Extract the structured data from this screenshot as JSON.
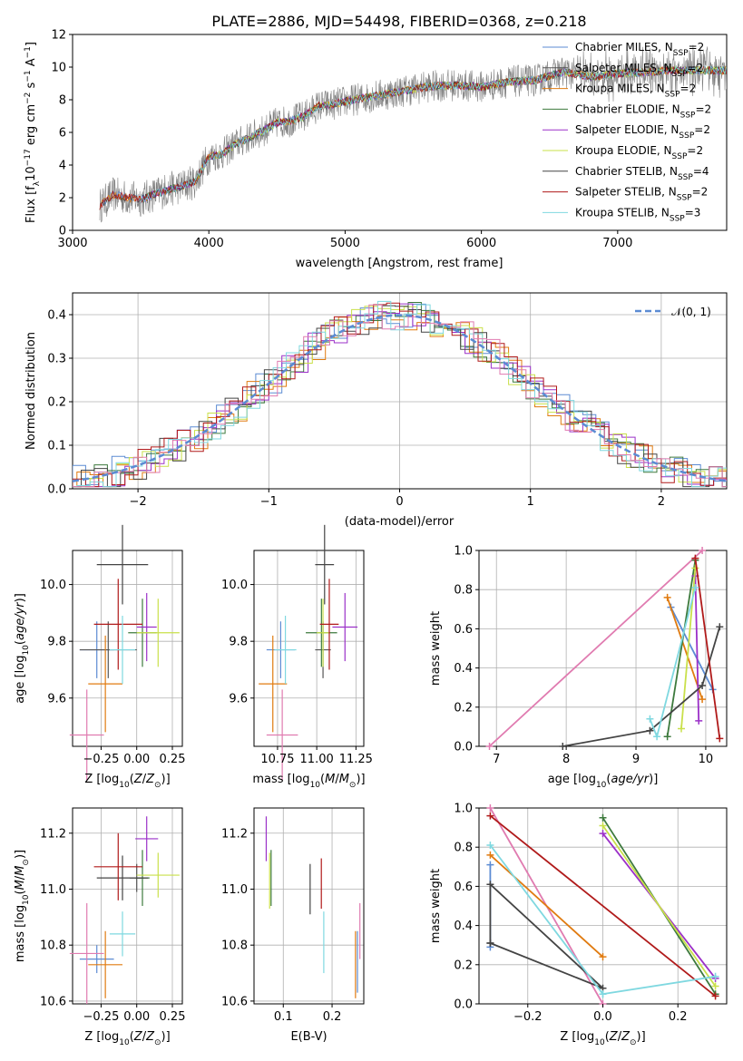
{
  "figure_title": "PLATE=2886, MJD=54498, FIBERID=0368, z=0.218",
  "colors": {
    "Chabrier MILES": "#5b8bd3",
    "Salpeter MILES": "#555555",
    "Kroupa MILES": "#e07b10",
    "Chabrier ELODIE": "#3d7a3d",
    "Salpeter ELODIE": "#9b30c8",
    "Kroupa ELODIE": "#c9e04a",
    "Chabrier STELIB": "#444444",
    "Salpeter STELIB": "#b01a1a",
    "Kroupa STELIB": "#7fd8e0",
    "Pink": "#e07bb0",
    "data": "#808080"
  },
  "chart_data": [
    {
      "type": "line",
      "id": "spectrum",
      "title": "PLATE=2886, MJD=54498, FIBERID=0368, z=0.218",
      "xlabel": "wavelength [Angstrom, rest frame]",
      "ylabel": "Flux [fλ10^-17 erg cm^-2 s^-1 A^-1]",
      "xlim": [
        3000,
        7800
      ],
      "ylim": [
        0,
        12
      ],
      "xticks": [
        "3000",
        "4000",
        "5000",
        "6000",
        "7000"
      ],
      "yticks": [
        "0",
        "2",
        "4",
        "6",
        "8",
        "10",
        "12"
      ],
      "legend": [
        "Chabrier MILES, N_SSP=2",
        "Salpeter MILES, N_SSP=2",
        "Kroupa MILES, N_SSP=2",
        "Chabrier ELODIE, N_SSP=2",
        "Salpeter ELODIE, N_SSP=2",
        "Kroupa ELODIE, N_SSP=2",
        "Chabrier STELIB, N_SSP=4",
        "Salpeter STELIB, N_SSP=2",
        "Kroupa STELIB, N_SSP=3"
      ],
      "legend_placement": "right",
      "continuum": {
        "x": [
          3200,
          3300,
          3400,
          3500,
          3600,
          3700,
          3800,
          3900,
          4000,
          4100,
          4200,
          4300,
          4400,
          4500,
          4600,
          4700,
          4800,
          4900,
          5000,
          5200,
          5400,
          5600,
          5800,
          6000,
          6200,
          6400,
          6600,
          6800,
          7000,
          7200,
          7400,
          7600,
          7800
        ],
        "y": [
          1.5,
          2.2,
          2.0,
          1.9,
          2.2,
          2.5,
          2.7,
          3.0,
          4.5,
          4.7,
          5.3,
          5.7,
          6.1,
          6.6,
          6.7,
          7.0,
          7.6,
          7.7,
          7.9,
          8.2,
          8.5,
          8.8,
          8.9,
          8.8,
          9.1,
          9.2,
          9.7,
          9.4,
          9.6,
          9.7,
          9.8,
          9.8,
          9.8
        ]
      }
    },
    {
      "type": "line",
      "id": "residual_histogram",
      "xlabel": "(data-model)/error",
      "ylabel": "Normed distribution",
      "xlim": [
        -2.5,
        2.5
      ],
      "ylim": [
        0,
        0.45
      ],
      "xticks": [
        "−2",
        "−1",
        "0",
        "1",
        "2"
      ],
      "yticks": [
        "0.0",
        "0.1",
        "0.2",
        "0.3",
        "0.4"
      ],
      "legend": [
        "𝒩(0, 1)"
      ],
      "legend_placement": "upper right",
      "gaussian": {
        "mean": 0,
        "sigma": 1
      }
    },
    {
      "type": "scatter",
      "id": "age_vs_Z",
      "xlabel": "Z [log10(Z/Z⊙)]",
      "ylabel": "age [log10(age/yr)]",
      "xlim": [
        -0.45,
        0.32
      ],
      "ylim": [
        9.43,
        10.12
      ],
      "xticks": [
        "−0.25",
        "0.00",
        "0.25"
      ],
      "yticks": [
        "9.6",
        "9.8",
        "10.0"
      ],
      "points": [
        {
          "model": "Chabrier MILES",
          "x": -0.28,
          "xerr": 0.12,
          "y": 9.77,
          "yerr": 0.1
        },
        {
          "model": "Salpeter MILES",
          "x": -0.2,
          "xerr": 0.2,
          "y": 9.77,
          "yerr": 0.1
        },
        {
          "model": "Kroupa MILES",
          "x": -0.22,
          "xerr": 0.12,
          "y": 9.65,
          "yerr": 0.17
        },
        {
          "model": "Chabrier ELODIE",
          "x": 0.04,
          "xerr": 0.1,
          "y": 9.83,
          "yerr": 0.12
        },
        {
          "model": "Salpeter ELODIE",
          "x": 0.07,
          "xerr": 0.07,
          "y": 9.85,
          "yerr": 0.12
        },
        {
          "model": "Kroupa ELODIE",
          "x": 0.15,
          "xerr": 0.15,
          "y": 9.83,
          "yerr": 0.12
        },
        {
          "model": "Chabrier STELIB",
          "x": -0.1,
          "xerr": 0.18,
          "y": 10.07,
          "yerr": 0.14
        },
        {
          "model": "Salpeter STELIB",
          "x": -0.13,
          "xerr": 0.17,
          "y": 9.86,
          "yerr": 0.16
        },
        {
          "model": "Kroupa STELIB",
          "x": -0.1,
          "xerr": 0.09,
          "y": 9.77,
          "yerr": 0.12
        },
        {
          "model": "Pink",
          "x": -0.35,
          "xerr": 0.12,
          "y": 9.47,
          "yerr": 0.16
        }
      ]
    },
    {
      "type": "scatter",
      "id": "age_vs_mass",
      "xlabel": "mass [log10(M/M⊙)]",
      "ylim": [
        9.43,
        10.12
      ],
      "xlim": [
        10.6,
        11.3
      ],
      "xticks": [
        "10.75",
        "11.00",
        "11.25"
      ],
      "yticks": [
        "9.6",
        "9.8",
        "10.0"
      ],
      "points": [
        {
          "model": "Chabrier MILES",
          "x": 10.77,
          "xerr": 0.09,
          "y": 9.77,
          "yerr": 0.1
        },
        {
          "model": "Salpeter MILES",
          "x": 11.04,
          "xerr": 0.05,
          "y": 9.77,
          "yerr": 0.1
        },
        {
          "model": "Kroupa MILES",
          "x": 10.72,
          "xerr": 0.09,
          "y": 9.65,
          "yerr": 0.17
        },
        {
          "model": "Chabrier ELODIE",
          "x": 11.03,
          "xerr": 0.1,
          "y": 9.83,
          "yerr": 0.12
        },
        {
          "model": "Salpeter ELODIE",
          "x": 11.18,
          "xerr": 0.08,
          "y": 9.85,
          "yerr": 0.12
        },
        {
          "model": "Kroupa ELODIE",
          "x": 11.04,
          "xerr": 0.04,
          "y": 9.83,
          "yerr": 0.12
        },
        {
          "model": "Chabrier STELIB",
          "x": 11.05,
          "xerr": 0.06,
          "y": 10.07,
          "yerr": 0.14
        },
        {
          "model": "Salpeter STELIB",
          "x": 11.08,
          "xerr": 0.06,
          "y": 9.86,
          "yerr": 0.16
        },
        {
          "model": "Kroupa STELIB",
          "x": 10.8,
          "xerr": 0.07,
          "y": 9.77,
          "yerr": 0.12
        },
        {
          "model": "Pink",
          "x": 10.78,
          "xerr": 0.1,
          "y": 9.47,
          "yerr": 0.16
        }
      ]
    },
    {
      "type": "line",
      "id": "mass_weight_vs_age",
      "xlabel": "age [log10(age/yr)]",
      "ylabel": "mass weight",
      "xlim": [
        6.75,
        10.3
      ],
      "ylim": [
        0,
        1
      ],
      "xticks": [
        "7",
        "8",
        "9",
        "10"
      ],
      "yticks": [
        "0.0",
        "0.2",
        "0.4",
        "0.6",
        "0.8",
        "1.0"
      ],
      "series": [
        {
          "model": "Pink",
          "x": [
            6.9,
            9.95
          ],
          "y": [
            0.0,
            1.0
          ]
        },
        {
          "model": "Chabrier MILES",
          "x": [
            9.5,
            10.1
          ],
          "y": [
            0.71,
            0.29
          ]
        },
        {
          "model": "Kroupa MILES",
          "x": [
            9.45,
            9.95
          ],
          "y": [
            0.76,
            0.24
          ]
        },
        {
          "model": "Chabrier ELODIE",
          "x": [
            9.45,
            9.85
          ],
          "y": [
            0.05,
            0.95
          ]
        },
        {
          "model": "Salpeter ELODIE",
          "x": [
            9.85,
            9.9
          ],
          "y": [
            0.87,
            0.13
          ]
        },
        {
          "model": "Kroupa ELODIE",
          "x": [
            9.65,
            9.85
          ],
          "y": [
            0.09,
            0.91
          ]
        },
        {
          "model": "Chabrier STELIB",
          "x": [
            7.95,
            9.2,
            9.95,
            10.2
          ],
          "y": [
            0.0,
            0.08,
            0.31,
            0.61
          ]
        },
        {
          "model": "Salpeter STELIB",
          "x": [
            9.85,
            10.2
          ],
          "y": [
            0.96,
            0.04
          ]
        },
        {
          "model": "Kroupa STELIB",
          "x": [
            9.2,
            9.3,
            9.85
          ],
          "y": [
            0.14,
            0.05,
            0.81
          ]
        }
      ]
    },
    {
      "type": "scatter",
      "id": "mass_vs_Z",
      "xlabel": "Z [log10(Z/Z⊙)]",
      "ylabel": "mass [log10(M/M⊙)]",
      "xlim": [
        -0.45,
        0.32
      ],
      "ylim": [
        10.59,
        11.29
      ],
      "xticks": [
        "−0.25",
        "0.00",
        "0.25"
      ],
      "yticks": [
        "10.6",
        "10.8",
        "11.0",
        "11.2"
      ],
      "points": [
        {
          "model": "Chabrier MILES",
          "x": -0.28,
          "xerr": 0.12,
          "y": 10.75,
          "yerr": 0.05
        },
        {
          "model": "Salpeter MILES",
          "x": 0.0,
          "xerr": 0.05,
          "y": 11.04,
          "yerr": 0.05
        },
        {
          "model": "Kroupa MILES",
          "x": -0.22,
          "xerr": 0.12,
          "y": 10.73,
          "yerr": 0.12
        },
        {
          "model": "Chabrier ELODIE",
          "x": 0.04,
          "xerr": 0.05,
          "y": 11.04,
          "yerr": 0.1
        },
        {
          "model": "Salpeter ELODIE",
          "x": 0.07,
          "xerr": 0.08,
          "y": 11.18,
          "yerr": 0.08
        },
        {
          "model": "Kroupa ELODIE",
          "x": 0.15,
          "xerr": 0.15,
          "y": 11.05,
          "yerr": 0.08
        },
        {
          "model": "Chabrier STELIB",
          "x": -0.1,
          "xerr": 0.18,
          "y": 11.04,
          "yerr": 0.08
        },
        {
          "model": "Salpeter STELIB",
          "x": -0.13,
          "xerr": 0.17,
          "y": 11.08,
          "yerr": 0.12
        },
        {
          "model": "Kroupa STELIB",
          "x": -0.1,
          "xerr": 0.09,
          "y": 10.84,
          "yerr": 0.08
        },
        {
          "model": "Pink",
          "x": -0.35,
          "xerr": 0.12,
          "y": 10.77,
          "yerr": 0.18
        }
      ]
    },
    {
      "type": "scatter",
      "id": "mass_vs_ebv",
      "xlabel": "E(B-V)",
      "xlim": [
        0.04,
        0.265
      ],
      "ylim": [
        10.59,
        11.29
      ],
      "xticks": [
        "0.1",
        "0.2"
      ],
      "yticks": [
        "10.6",
        "10.8",
        "11.0",
        "11.2"
      ],
      "points": [
        {
          "model": "Salpeter ELODIE",
          "x": 0.065,
          "y": 11.18,
          "yerr": 0.08
        },
        {
          "model": "Chabrier ELODIE",
          "x": 0.075,
          "y": 11.04,
          "yerr": 0.1
        },
        {
          "model": "Kroupa ELODIE",
          "x": 0.072,
          "y": 11.03,
          "yerr": 0.1
        },
        {
          "model": "Chabrier STELIB",
          "x": 0.155,
          "y": 11.0,
          "yerr": 0.09
        },
        {
          "model": "Salpeter STELIB",
          "x": 0.178,
          "y": 11.02,
          "yerr": 0.09
        },
        {
          "model": "Kroupa STELIB",
          "x": 0.183,
          "y": 10.81,
          "yerr": 0.11
        },
        {
          "model": "Kroupa MILES",
          "x": 0.248,
          "y": 10.73,
          "yerr": 0.12
        },
        {
          "model": "Chabrier MILES",
          "x": 0.252,
          "y": 10.74,
          "yerr": 0.11
        },
        {
          "model": "Pink",
          "x": 0.257,
          "y": 10.85,
          "yerr": 0.1
        }
      ]
    },
    {
      "type": "line",
      "id": "mass_weight_vs_Z",
      "xlabel": "Z [log10(Z/Z⊙)]",
      "ylabel": "mass weight",
      "xlim": [
        -0.33,
        0.33
      ],
      "ylim": [
        0,
        1
      ],
      "xticks": [
        "−0.2",
        "0.0",
        "0.2"
      ],
      "yticks": [
        "0.0",
        "0.2",
        "0.4",
        "0.6",
        "0.8",
        "1.0"
      ],
      "series": [
        {
          "model": "Pink",
          "x": [
            -0.3,
            0.0
          ],
          "y": [
            1.0,
            0.0
          ]
        },
        {
          "model": "Chabrier MILES",
          "x": [
            -0.3,
            -0.3
          ],
          "y": [
            0.71,
            0.29
          ]
        },
        {
          "model": "Kroupa MILES",
          "x": [
            -0.3,
            0.0
          ],
          "y": [
            0.76,
            0.24
          ]
        },
        {
          "model": "Chabrier ELODIE",
          "x": [
            0.0,
            0.3
          ],
          "y": [
            0.95,
            0.05
          ]
        },
        {
          "model": "Salpeter ELODIE",
          "x": [
            0.0,
            0.3
          ],
          "y": [
            0.87,
            0.13
          ]
        },
        {
          "model": "Kroupa ELODIE",
          "x": [
            0.0,
            0.3
          ],
          "y": [
            0.91,
            0.09
          ]
        },
        {
          "model": "Chabrier STELIB",
          "x": [
            -0.3,
            -0.3,
            0.0,
            -0.3
          ],
          "y": [
            0.31,
            0.61,
            0.08,
            0.31
          ]
        },
        {
          "model": "Salpeter STELIB",
          "x": [
            -0.3,
            0.3
          ],
          "y": [
            0.96,
            0.04
          ]
        },
        {
          "model": "Kroupa STELIB",
          "x": [
            -0.3,
            0.0,
            0.0,
            0.3
          ],
          "y": [
            0.81,
            0.05,
            0.05,
            0.14
          ]
        }
      ]
    }
  ]
}
